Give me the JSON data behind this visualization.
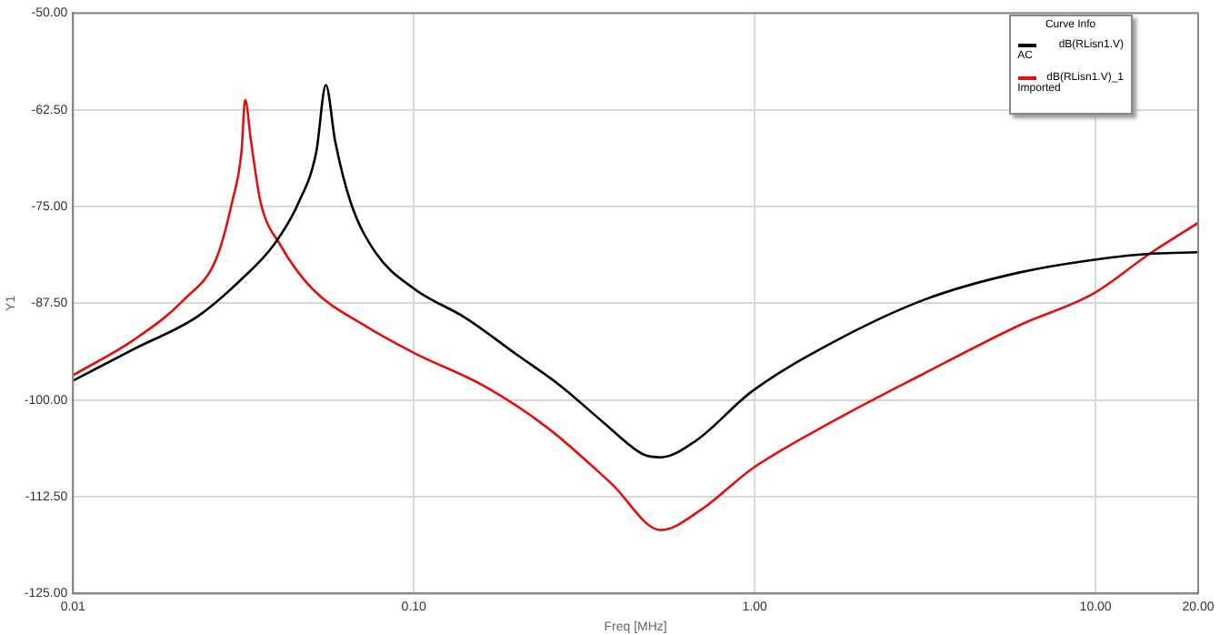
{
  "chart_data": {
    "type": "line",
    "xlabel": "Freq [MHz]",
    "ylabel": "Y1",
    "legend_title": "Curve Info",
    "legend": "top right",
    "log": "x",
    "grid": true,
    "marker": "none",
    "line_style": "solid",
    "xlim": [
      0.01,
      20
    ],
    "xticks": [
      {
        "value": 0.01,
        "label": "0.01"
      },
      {
        "value": 0.1,
        "label": "0.10"
      },
      {
        "value": 1,
        "label": "1.00"
      },
      {
        "value": 10,
        "label": "10.00"
      },
      {
        "value": 20,
        "label": "20.00"
      }
    ],
    "ylim": [
      -125,
      -50
    ],
    "yticks": [
      {
        "value": -125,
        "label": "-125.00"
      },
      {
        "value": -112.5,
        "label": "-112.50"
      },
      {
        "value": -100,
        "label": "-100.00"
      },
      {
        "value": -87.5,
        "label": "-87.50"
      },
      {
        "value": -75,
        "label": "-75.00"
      },
      {
        "value": -62.5,
        "label": "-62.50"
      },
      {
        "value": -50,
        "label": "-50.00"
      }
    ],
    "annotations": [
      "AC",
      "Imported"
    ],
    "series": [
      {
        "name": "dB(RLisn1.V)",
        "color": "#000000",
        "x": [
          0.01,
          0.0151,
          0.0232,
          0.0312,
          0.0389,
          0.046,
          0.0517,
          0.0552,
          0.0588,
          0.0652,
          0.0771,
          0.1,
          0.142,
          0.2,
          0.27,
          0.36,
          0.47,
          0.53,
          0.67,
          0.98,
          1.67,
          3.16,
          6,
          11,
          14.4,
          20
        ],
        "values": [
          -97.5,
          -93.4,
          -89.2,
          -84.4,
          -79.9,
          -74.4,
          -68,
          -59.3,
          -66.6,
          -74.4,
          -80.9,
          -85.6,
          -89.4,
          -94.1,
          -98.2,
          -102.9,
          -107,
          -107.4,
          -105.3,
          -98.9,
          -92.7,
          -87,
          -83.5,
          -81.6,
          -81.1,
          -80.9
        ]
      },
      {
        "name": "dB(RLisn1.V)_1",
        "color": "#e01010",
        "x": [
          0.01,
          0.0151,
          0.0212,
          0.0264,
          0.0293,
          0.0312,
          0.032,
          0.0333,
          0.0355,
          0.0405,
          0.0503,
          0.0713,
          0.1,
          0.161,
          0.247,
          0.38,
          0.53,
          0.7,
          0.98,
          1.67,
          3.16,
          6,
          9.8,
          14.4,
          20
        ],
        "values": [
          -96.8,
          -92.2,
          -87,
          -81.6,
          -74.4,
          -68,
          -61.2,
          -66.6,
          -74.4,
          -79.9,
          -85.6,
          -90.3,
          -93.9,
          -98.2,
          -103.6,
          -110.8,
          -116.8,
          -114.1,
          -108.9,
          -102.9,
          -96.5,
          -90.3,
          -86.3,
          -81.1,
          -77.1
        ]
      }
    ]
  }
}
